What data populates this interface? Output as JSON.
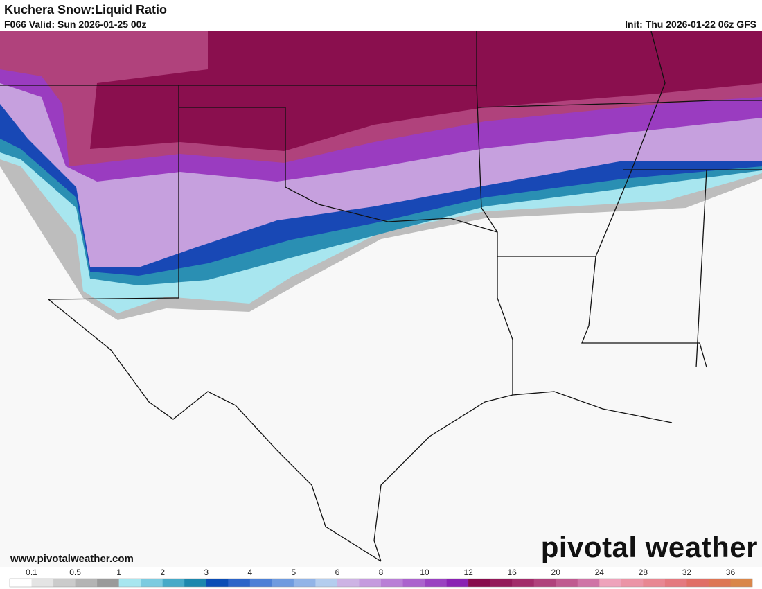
{
  "header": {
    "title": "Kuchera Snow:Liquid Ratio",
    "valid": "F066 Valid: Sun 2026-01-25 00z",
    "init": "Init: Thu 2026-01-22 06z GFS"
  },
  "footer": {
    "website": "www.pivotalweather.com",
    "brand": "pivotal weather"
  },
  "colorbar": {
    "labels": [
      "0.1",
      "0.5",
      "1",
      "2",
      "3",
      "4",
      "5",
      "6",
      "8",
      "10",
      "12",
      "16",
      "20",
      "24",
      "28",
      "32",
      "36"
    ],
    "colors": [
      "#ffffff",
      "#e4e4e4",
      "#cbcbcb",
      "#b4b4b4",
      "#9a9a9a",
      "#a8e6ef",
      "#7ccbe0",
      "#47aac8",
      "#1d87ad",
      "#0b4db5",
      "#2c64c8",
      "#4d80d6",
      "#6f9bdf",
      "#92b4e7",
      "#b4cdee",
      "#cdb3e4",
      "#c59ade",
      "#b97fd6",
      "#ab63cd",
      "#9a42c1",
      "#8a22b3",
      "#870c4c",
      "#941a5a",
      "#a22c6a",
      "#b0427c",
      "#c05a90",
      "#cf74a6",
      "#eea3bb",
      "#eb94a6",
      "#e88792",
      "#e4797f",
      "#e06e66",
      "#dd7654",
      "#d9864a"
    ]
  }
}
